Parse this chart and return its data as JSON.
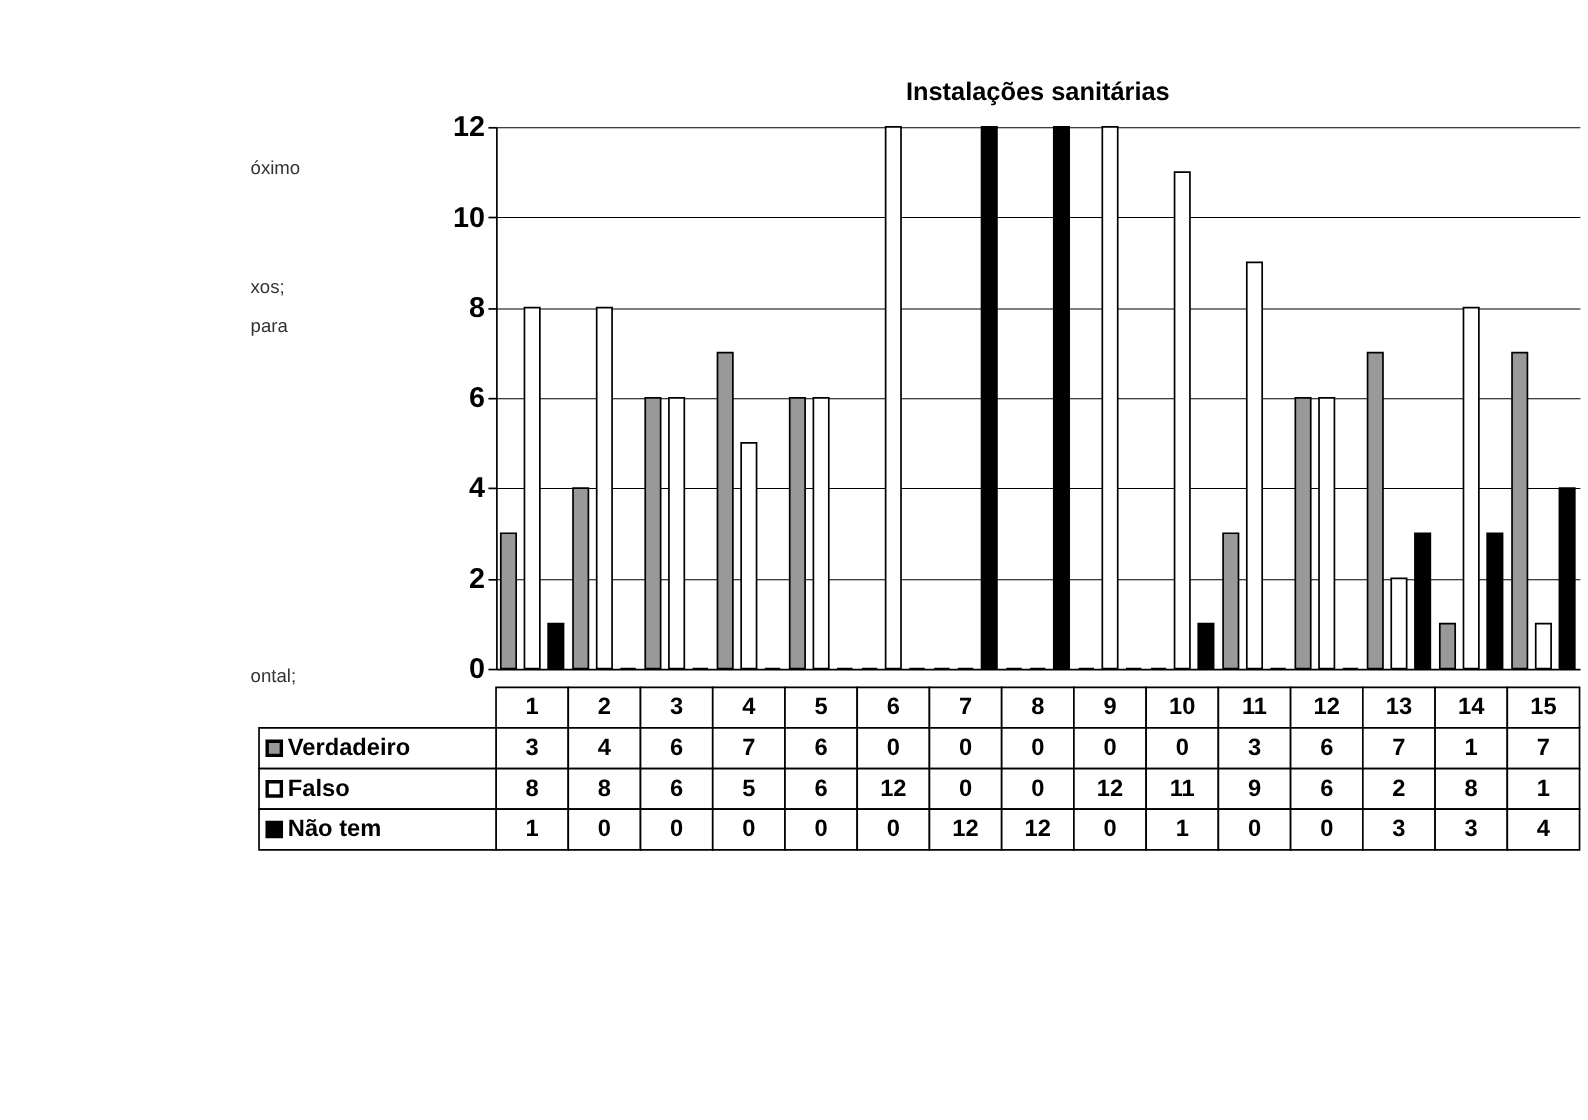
{
  "chart_data": {
    "type": "bar",
    "title": "Instalações  sanitárias",
    "categories": [
      "1",
      "2",
      "3",
      "4",
      "5",
      "6",
      "7",
      "8",
      "9",
      "10",
      "11",
      "12",
      "13",
      "14",
      "15"
    ],
    "series": [
      {
        "name": "Verdadeiro",
        "color": "#999999",
        "values": [
          3,
          4,
          6,
          7,
          6,
          0,
          0,
          0,
          0,
          0,
          3,
          6,
          7,
          1,
          7
        ]
      },
      {
        "name": "Falso",
        "color": "#ffffff",
        "values": [
          8,
          8,
          6,
          5,
          6,
          12,
          0,
          0,
          12,
          11,
          9,
          6,
          2,
          8,
          1
        ]
      },
      {
        "name": "Não tem",
        "color": "#000000",
        "values": [
          1,
          0,
          0,
          0,
          0,
          0,
          12,
          12,
          0,
          1,
          0,
          0,
          3,
          3,
          4
        ]
      }
    ],
    "ylim": [
      0,
      12
    ],
    "yticks": [
      0,
      2,
      4,
      6,
      8,
      10,
      12
    ],
    "grid": "y",
    "legend": "bottom left",
    "data_labels": true,
    "tick_labels": "y",
    "annotations": [
      "óximo",
      "xos;",
      "para",
      "ontal;"
    ]
  }
}
